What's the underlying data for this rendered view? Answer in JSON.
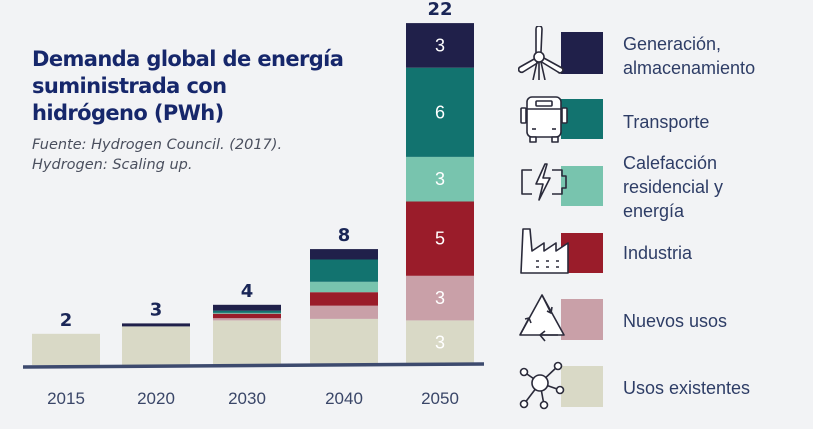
{
  "header": {
    "title_lines": [
      "Demanda global de energía",
      "suministrada con",
      "hidrógeno (PWh)"
    ],
    "source_lines": [
      "Fuente: Hydrogen Council. (2017).",
      "Hydrogen: Scaling up."
    ]
  },
  "legend": [
    {
      "label_lines": [
        "Generación,",
        "almacenamiento"
      ],
      "icon": "wind-turbine-icon",
      "color": "#20204a"
    },
    {
      "label_lines": [
        "Transporte"
      ],
      "icon": "bus-icon",
      "color": "#12736f"
    },
    {
      "label_lines": [
        "Calefacción",
        "residencial y",
        "energía"
      ],
      "icon": "battery-bolt-icon",
      "color": "#78c4ae"
    },
    {
      "label_lines": [
        "Industria"
      ],
      "icon": "factory-icon",
      "color": "#9a1c2a"
    },
    {
      "label_lines": [
        "Nuevos usos"
      ],
      "icon": "recycle-triangle-icon",
      "color": "#c9a0a8"
    },
    {
      "label_lines": [
        "Usos existentes"
      ],
      "icon": "network-hub-icon",
      "color": "#d9d9c6"
    }
  ],
  "chart_data": {
    "type": "bar",
    "stacked": true,
    "title": "Demanda global de energía suministrada con hidrógeno (PWh)",
    "subtitle": "Fuente: Hydrogen Council. (2017). Hydrogen: Scaling up.",
    "xlabel": "",
    "ylabel": "PWh",
    "categories": [
      "2015",
      "2020",
      "2030",
      "2040",
      "2050"
    ],
    "totals": [
      2,
      3,
      4,
      8,
      22
    ],
    "ylim": [
      0,
      22
    ],
    "grid": false,
    "legend_position": "right",
    "series": [
      {
        "name": "Usos existentes",
        "color": "#d9d9c6",
        "values": [
          2.1,
          2.6,
          3.0,
          3.1,
          3
        ],
        "labels": [
          null,
          null,
          null,
          null,
          "3"
        ]
      },
      {
        "name": "Nuevos usos",
        "color": "#c9a0a8",
        "values": [
          0,
          0,
          0.15,
          0.9,
          3
        ],
        "labels": [
          null,
          null,
          null,
          null,
          "3"
        ]
      },
      {
        "name": "Industria",
        "color": "#9a1c2a",
        "values": [
          0,
          0,
          0.3,
          0.9,
          5
        ],
        "labels": [
          null,
          null,
          null,
          null,
          "5"
        ]
      },
      {
        "name": "Calefacción residencial y energía",
        "color": "#78c4ae",
        "values": [
          0,
          0,
          0.05,
          0.7,
          3
        ],
        "labels": [
          null,
          null,
          null,
          null,
          "3"
        ]
      },
      {
        "name": "Transporte",
        "color": "#12736f",
        "values": [
          0,
          0,
          0.15,
          1.5,
          6
        ],
        "labels": [
          null,
          null,
          null,
          null,
          "6"
        ]
      },
      {
        "name": "Generación, almacenamiento",
        "color": "#20204a",
        "values": [
          0,
          0.2,
          0.4,
          0.7,
          3
        ],
        "labels": [
          null,
          null,
          null,
          null,
          "3"
        ]
      }
    ]
  }
}
